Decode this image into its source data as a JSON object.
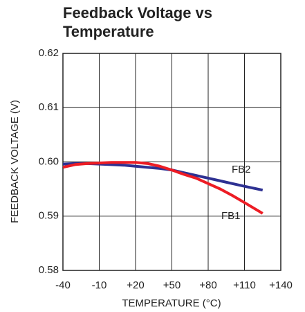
{
  "chart_data": {
    "type": "line",
    "title": [
      "Feedback Voltage vs",
      "Temperature"
    ],
    "xlabel": "TEMPERATURE (°C)",
    "ylabel": "FEEDBACK VOLTAGE (V)",
    "x": [
      -40,
      -30,
      -20,
      -10,
      0,
      10,
      20,
      30,
      40,
      50,
      60,
      70,
      80,
      90,
      100,
      110,
      125
    ],
    "series": [
      {
        "name": "FB2",
        "color": "#2e3192",
        "values": [
          0.5996,
          0.5997,
          0.5997,
          0.5996,
          0.5995,
          0.5994,
          0.5992,
          0.599,
          0.5988,
          0.5985,
          0.598,
          0.5975,
          0.597,
          0.5965,
          0.596,
          0.5955,
          0.5948
        ]
      },
      {
        "name": "FB1",
        "color": "#ed1c24",
        "values": [
          0.599,
          0.5995,
          0.5997,
          0.5998,
          0.5999,
          0.5999,
          0.5999,
          0.5997,
          0.5992,
          0.5985,
          0.5977,
          0.597,
          0.596,
          0.595,
          0.5938,
          0.5925,
          0.5905
        ]
      }
    ],
    "xlim": [
      -40,
      140
    ],
    "xticks": [
      -40,
      -10,
      {
        "value": 20,
        "label": "+20"
      },
      {
        "value": 50,
        "label": "+50"
      },
      {
        "value": 80,
        "label": "+80"
      },
      {
        "value": 110,
        "label": "+110"
      },
      {
        "value": 140,
        "label": "+140"
      }
    ],
    "ylim": [
      0.58,
      0.62
    ],
    "yticks": [
      0.58,
      0.59,
      {
        "value": 0.6,
        "label": "0.60"
      },
      0.61,
      0.62
    ],
    "grid": true
  }
}
